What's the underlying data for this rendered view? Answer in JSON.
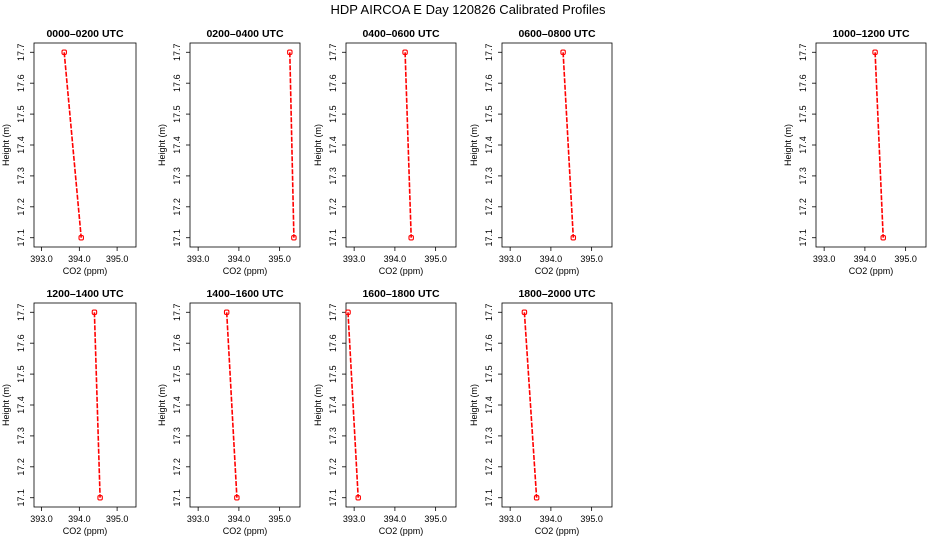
{
  "page": {
    "title": "HDP AIRCOA E  Day 120826  Calibrated Profiles"
  },
  "colors": {
    "line": "#ff0000",
    "marker": "#ff0000",
    "axes": "#000000"
  },
  "chart_data": [
    {
      "type": "line",
      "title": "0000–0200 UTC",
      "xlabel": "CO2 (ppm)",
      "ylabel": "Height (m)",
      "xlim": [
        392.8,
        395.5
      ],
      "ylim": [
        17.07,
        17.73
      ],
      "xticks": [
        393.0,
        394.0,
        395.0
      ],
      "xtick_labels": [
        "393.0",
        "394.0",
        "395.0"
      ],
      "yticks": [
        17.1,
        17.2,
        17.3,
        17.4,
        17.5,
        17.6,
        17.7
      ],
      "ytick_labels": [
        "17.1",
        "17.2",
        "17.3",
        "17.4",
        "17.5",
        "17.6",
        "17.7"
      ],
      "series": [
        {
          "x": [
            393.6,
            394.05
          ],
          "y": [
            17.7,
            17.1
          ]
        }
      ]
    },
    {
      "type": "line",
      "title": "0200–0400 UTC",
      "xlabel": "CO2 (ppm)",
      "ylabel": "Height (m)",
      "xlim": [
        392.8,
        395.5
      ],
      "ylim": [
        17.07,
        17.73
      ],
      "xticks": [
        393.0,
        394.0,
        395.0
      ],
      "xtick_labels": [
        "393.0",
        "394.0",
        "395.0"
      ],
      "yticks": [
        17.1,
        17.2,
        17.3,
        17.4,
        17.5,
        17.6,
        17.7
      ],
      "ytick_labels": [
        "17.1",
        "17.2",
        "17.3",
        "17.4",
        "17.5",
        "17.6",
        "17.7"
      ],
      "series": [
        {
          "x": [
            395.25,
            395.35
          ],
          "y": [
            17.7,
            17.1
          ]
        }
      ]
    },
    {
      "type": "line",
      "title": "0400–0600 UTC",
      "xlabel": "CO2 (ppm)",
      "ylabel": "Height (m)",
      "xlim": [
        392.8,
        395.5
      ],
      "ylim": [
        17.07,
        17.73
      ],
      "xticks": [
        393.0,
        394.0,
        395.0
      ],
      "xtick_labels": [
        "393.0",
        "394.0",
        "395.0"
      ],
      "yticks": [
        17.1,
        17.2,
        17.3,
        17.4,
        17.5,
        17.6,
        17.7
      ],
      "ytick_labels": [
        "17.1",
        "17.2",
        "17.3",
        "17.4",
        "17.5",
        "17.6",
        "17.7"
      ],
      "series": [
        {
          "x": [
            394.25,
            394.4
          ],
          "y": [
            17.7,
            17.1
          ]
        }
      ]
    },
    {
      "type": "line",
      "title": "0600–0800 UTC",
      "xlabel": "CO2 (ppm)",
      "ylabel": "Height (m)",
      "xlim": [
        392.8,
        395.5
      ],
      "ylim": [
        17.07,
        17.73
      ],
      "xticks": [
        393.0,
        394.0,
        395.0
      ],
      "xtick_labels": [
        "393.0",
        "394.0",
        "395.0"
      ],
      "yticks": [
        17.1,
        17.2,
        17.3,
        17.4,
        17.5,
        17.6,
        17.7
      ],
      "ytick_labels": [
        "17.1",
        "17.2",
        "17.3",
        "17.4",
        "17.5",
        "17.6",
        "17.7"
      ],
      "series": [
        {
          "x": [
            394.3,
            394.55
          ],
          "y": [
            17.7,
            17.1
          ]
        }
      ]
    },
    {
      "type": "line",
      "title": "1000–1200 UTC",
      "xlabel": "CO2 (ppm)",
      "ylabel": "Height (m)",
      "xlim": [
        392.8,
        395.5
      ],
      "ylim": [
        17.07,
        17.73
      ],
      "xticks": [
        393.0,
        394.0,
        395.0
      ],
      "xtick_labels": [
        "393.0",
        "394.0",
        "395.0"
      ],
      "yticks": [
        17.1,
        17.2,
        17.3,
        17.4,
        17.5,
        17.6,
        17.7
      ],
      "ytick_labels": [
        "17.1",
        "17.2",
        "17.3",
        "17.4",
        "17.5",
        "17.6",
        "17.7"
      ],
      "series": [
        {
          "x": [
            394.25,
            394.45
          ],
          "y": [
            17.7,
            17.1
          ]
        }
      ]
    },
    {
      "type": "line",
      "title": "1200–1400 UTC",
      "xlabel": "CO2 (ppm)",
      "ylabel": "Height (m)",
      "xlim": [
        392.8,
        395.5
      ],
      "ylim": [
        17.07,
        17.73
      ],
      "xticks": [
        393.0,
        394.0,
        395.0
      ],
      "xtick_labels": [
        "393.0",
        "394.0",
        "395.0"
      ],
      "yticks": [
        17.1,
        17.2,
        17.3,
        17.4,
        17.5,
        17.6,
        17.7
      ],
      "ytick_labels": [
        "17.1",
        "17.2",
        "17.3",
        "17.4",
        "17.5",
        "17.6",
        "17.7"
      ],
      "series": [
        {
          "x": [
            394.4,
            394.55
          ],
          "y": [
            17.7,
            17.1
          ]
        }
      ]
    },
    {
      "type": "line",
      "title": "1400–1600 UTC",
      "xlabel": "CO2 (ppm)",
      "ylabel": "Height (m)",
      "xlim": [
        392.8,
        395.5
      ],
      "ylim": [
        17.07,
        17.73
      ],
      "xticks": [
        393.0,
        394.0,
        395.0
      ],
      "xtick_labels": [
        "393.0",
        "394.0",
        "395.0"
      ],
      "yticks": [
        17.1,
        17.2,
        17.3,
        17.4,
        17.5,
        17.6,
        17.7
      ],
      "ytick_labels": [
        "17.1",
        "17.2",
        "17.3",
        "17.4",
        "17.5",
        "17.6",
        "17.7"
      ],
      "series": [
        {
          "x": [
            393.7,
            393.95
          ],
          "y": [
            17.7,
            17.1
          ]
        }
      ]
    },
    {
      "type": "line",
      "title": "1600–1800 UTC",
      "xlabel": "CO2 (ppm)",
      "ylabel": "Height (m)",
      "xlim": [
        392.8,
        395.5
      ],
      "ylim": [
        17.07,
        17.73
      ],
      "xticks": [
        393.0,
        394.0,
        395.0
      ],
      "xtick_labels": [
        "393.0",
        "394.0",
        "395.0"
      ],
      "yticks": [
        17.1,
        17.2,
        17.3,
        17.4,
        17.5,
        17.6,
        17.7
      ],
      "ytick_labels": [
        "17.1",
        "17.2",
        "17.3",
        "17.4",
        "17.5",
        "17.6",
        "17.7"
      ],
      "series": [
        {
          "x": [
            392.85,
            393.1
          ],
          "y": [
            17.7,
            17.1
          ]
        }
      ]
    },
    {
      "type": "line",
      "title": "1800–2000 UTC",
      "xlabel": "CO2 (ppm)",
      "ylabel": "Height (m)",
      "xlim": [
        392.8,
        395.5
      ],
      "ylim": [
        17.07,
        17.73
      ],
      "xticks": [
        393.0,
        394.0,
        395.0
      ],
      "xtick_labels": [
        "393.0",
        "394.0",
        "395.0"
      ],
      "yticks": [
        17.1,
        17.2,
        17.3,
        17.4,
        17.5,
        17.6,
        17.7
      ],
      "ytick_labels": [
        "17.1",
        "17.2",
        "17.3",
        "17.4",
        "17.5",
        "17.6",
        "17.7"
      ],
      "series": [
        {
          "x": [
            393.35,
            393.65
          ],
          "y": [
            17.7,
            17.1
          ]
        }
      ]
    }
  ]
}
